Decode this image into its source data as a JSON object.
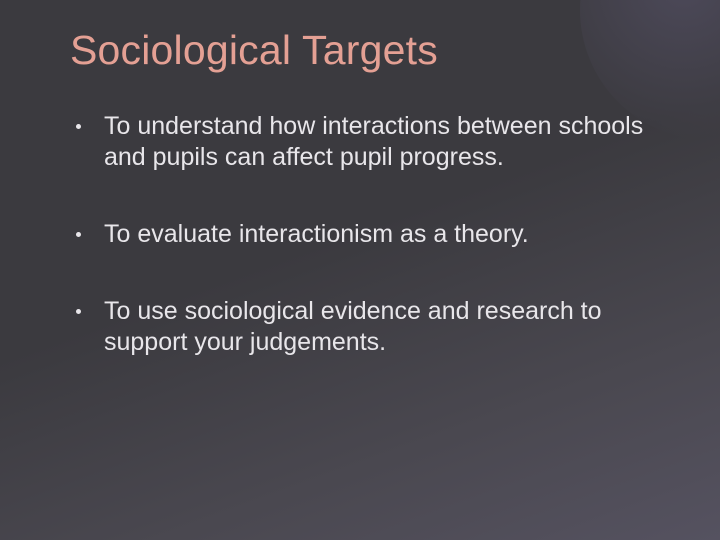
{
  "slide": {
    "title": "Sociological Targets",
    "title_color": "#e4a094",
    "body_color": "#e8e6ea",
    "background_gradient": [
      "#3b3a3f",
      "#555260"
    ],
    "title_fontsize": 41,
    "body_fontsize": 25,
    "bullets": [
      "To understand how interactions between schools and pupils can affect pupil progress.",
      "To evaluate interactionism as a theory.",
      "To use sociological evidence and research to support your judgements."
    ]
  }
}
